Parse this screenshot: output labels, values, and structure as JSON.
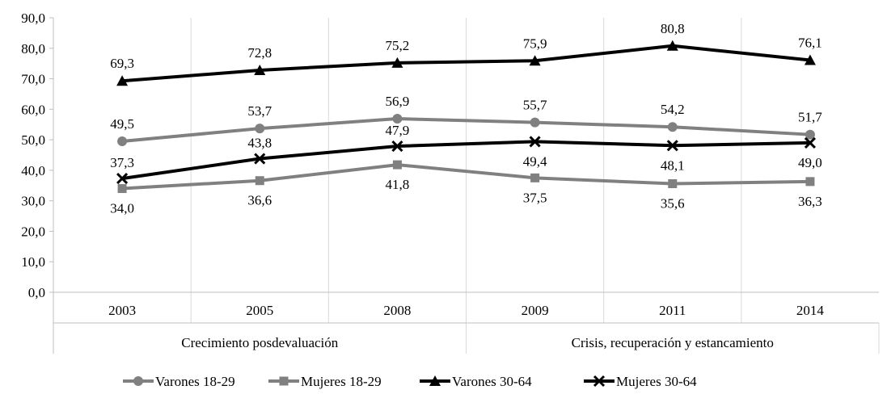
{
  "chart_data": {
    "type": "line",
    "categories": [
      "2003",
      "2005",
      "2008",
      "2009",
      "2011",
      "2014"
    ],
    "groups": [
      {
        "label": "Crecimiento posdevaluación",
        "span": [
          0,
          2
        ]
      },
      {
        "label": "Crisis, recuperación y estancamiento",
        "span": [
          3,
          5
        ]
      }
    ],
    "ylim": [
      0,
      90
    ],
    "yticks": [
      "0,0",
      "10,0",
      "20,0",
      "30,0",
      "40,0",
      "50,0",
      "60,0",
      "70,0",
      "80,0",
      "90,0"
    ],
    "grid": "vertical category separators",
    "legend_position": "bottom",
    "series": [
      {
        "name": "Varones 18-29",
        "marker": "circle",
        "color": "#808080",
        "values": [
          49.5,
          53.7,
          56.9,
          55.7,
          54.2,
          51.7
        ],
        "labels": [
          "49,5",
          "53,7",
          "56,9",
          "55,7",
          "54,2",
          "51,7"
        ],
        "label_pos": "above"
      },
      {
        "name": "Mujeres 18-29",
        "marker": "square",
        "color": "#808080",
        "values": [
          34.0,
          36.6,
          41.8,
          37.5,
          35.6,
          36.3
        ],
        "labels": [
          "34,0",
          "36,6",
          "41,8",
          "37,5",
          "35,6",
          "36,3"
        ],
        "label_pos": "below"
      },
      {
        "name": "Varones 30-64",
        "marker": "triangle",
        "color": "#000000",
        "values": [
          69.3,
          72.8,
          75.2,
          75.9,
          80.8,
          76.1
        ],
        "labels": [
          "69,3",
          "72,8",
          "75,2",
          "75,9",
          "80,8",
          "76,1"
        ],
        "label_pos": "above"
      },
      {
        "name": "Mujeres 30-64",
        "marker": "x",
        "color": "#000000",
        "values": [
          37.3,
          43.8,
          47.9,
          49.4,
          48.1,
          49.0
        ],
        "labels": [
          "37,3",
          "43,8",
          "47,9",
          "49,4",
          "48,1",
          "49,0"
        ],
        "label_pos": "mixed"
      }
    ]
  }
}
